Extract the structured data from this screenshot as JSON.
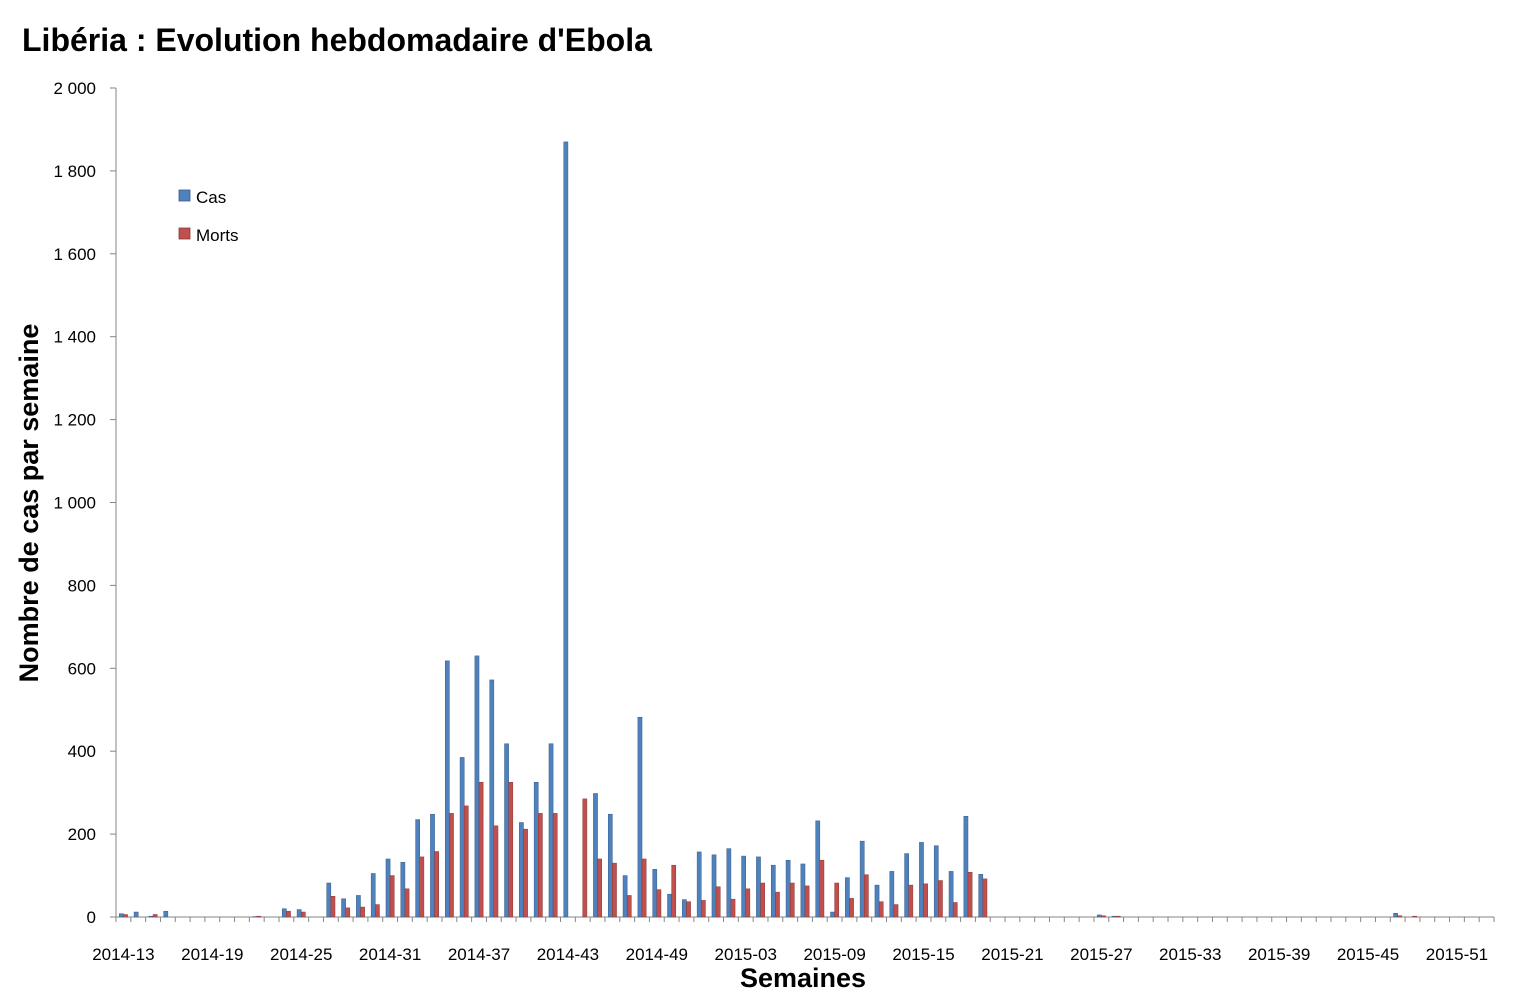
{
  "chart_data": {
    "type": "bar",
    "title": "Libéria : Evolution hebdomadaire d'Ebola",
    "xlabel": "Semaines",
    "ylabel": "Nombre de cas par semaine",
    "ylim": [
      0,
      2000
    ],
    "y_ticks": [
      0,
      200,
      400,
      600,
      800,
      1000,
      1200,
      1400,
      1600,
      1800,
      2000
    ],
    "y_tick_labels": [
      "0",
      "200",
      "400",
      "600",
      "800",
      "1 000",
      "1 200",
      "1 400",
      "1 600",
      "1 800",
      "2 000"
    ],
    "x_tick_labels": [
      "2014-13",
      "2014-19",
      "2014-25",
      "2014-31",
      "2014-37",
      "2014-43",
      "2014-49",
      "2015-03",
      "2015-09",
      "2015-15",
      "2015-21",
      "2015-27",
      "2015-33",
      "2015-39",
      "2015-45",
      "2015-51"
    ],
    "grid": false,
    "legend_position": "top-left",
    "categories": [
      "2014-13",
      "2014-14",
      "2014-15",
      "2014-16",
      "2014-17",
      "2014-18",
      "2014-19",
      "2014-20",
      "2014-21",
      "2014-22",
      "2014-23",
      "2014-24",
      "2014-25",
      "2014-26",
      "2014-27",
      "2014-28",
      "2014-29",
      "2014-30",
      "2014-31",
      "2014-32",
      "2014-33",
      "2014-34",
      "2014-35",
      "2014-36",
      "2014-37",
      "2014-38",
      "2014-39",
      "2014-40",
      "2014-41",
      "2014-42",
      "2014-43",
      "2014-44",
      "2014-45",
      "2014-46",
      "2014-47",
      "2014-48",
      "2014-49",
      "2014-50",
      "2014-51",
      "2014-52",
      "2015-01",
      "2015-02",
      "2015-03",
      "2015-04",
      "2015-05",
      "2015-06",
      "2015-07",
      "2015-08",
      "2015-09",
      "2015-10",
      "2015-11",
      "2015-12",
      "2015-13",
      "2015-14",
      "2015-15",
      "2015-16",
      "2015-17",
      "2015-18",
      "2015-19",
      "2015-20",
      "2015-21",
      "2015-22",
      "2015-23",
      "2015-24",
      "2015-25",
      "2015-26",
      "2015-27",
      "2015-28",
      "2015-29",
      "2015-30",
      "2015-31",
      "2015-32",
      "2015-33",
      "2015-34",
      "2015-35",
      "2015-36",
      "2015-37",
      "2015-38",
      "2015-39",
      "2015-40",
      "2015-41",
      "2015-42",
      "2015-43",
      "2015-44",
      "2015-45",
      "2015-46",
      "2015-47",
      "2015-48",
      "2015-49",
      "2015-50",
      "2015-51",
      "2015-52",
      "2015-53"
    ],
    "series": [
      {
        "name": "Cas",
        "color": "#4F81BD",
        "values": [
          8,
          12,
          2,
          14,
          0,
          0,
          0,
          0,
          0,
          1,
          0,
          20,
          18,
          0,
          82,
          44,
          52,
          105,
          140,
          132,
          235,
          248,
          618,
          385,
          630,
          572,
          418,
          228,
          325,
          418,
          1870,
          0,
          298,
          248,
          100,
          482,
          115,
          55,
          42,
          157,
          150,
          165,
          147,
          145,
          125,
          137,
          128,
          232,
          12,
          95,
          183,
          77,
          110,
          153,
          180,
          172,
          110,
          243,
          103,
          0,
          0,
          0,
          0,
          0,
          0,
          0,
          5,
          2,
          0,
          0,
          0,
          0,
          0,
          0,
          0,
          0,
          0,
          0,
          0,
          0,
          0,
          0,
          0,
          0,
          0,
          0,
          9,
          0,
          0,
          0,
          0,
          0,
          0
        ]
      },
      {
        "name": "Morts",
        "color": "#C0504D",
        "values": [
          6,
          0,
          6,
          0,
          0,
          0,
          0,
          0,
          0,
          2,
          0,
          14,
          12,
          0,
          50,
          22,
          24,
          30,
          100,
          68,
          145,
          158,
          250,
          268,
          325,
          220,
          325,
          212,
          250,
          250,
          0,
          285,
          140,
          130,
          52,
          140,
          66,
          125,
          37,
          40,
          73,
          43,
          68,
          82,
          60,
          82,
          75,
          137,
          82,
          45,
          102,
          37,
          30,
          77,
          80,
          88,
          35,
          108,
          92,
          0,
          0,
          0,
          0,
          0,
          0,
          0,
          3,
          2,
          0,
          0,
          0,
          0,
          0,
          0,
          0,
          0,
          0,
          0,
          0,
          0,
          0,
          0,
          0,
          0,
          0,
          0,
          3,
          2,
          0,
          0,
          0,
          0,
          0
        ]
      }
    ]
  }
}
